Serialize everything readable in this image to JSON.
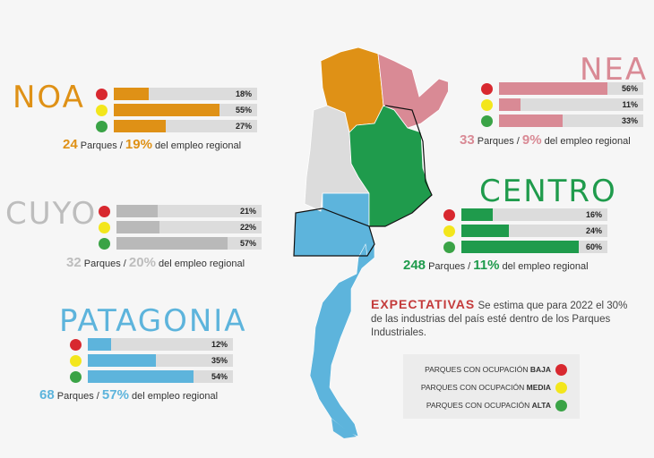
{
  "colors": {
    "red": "#d8282f",
    "yellow": "#f3e61c",
    "green": "#3aa346",
    "track": "#dcdcdc"
  },
  "chart_data": [
    {
      "type": "bar",
      "region": "NOA",
      "color": "#df9116",
      "categories": [
        "BAJA",
        "MEDIA",
        "ALTA"
      ],
      "values": [
        18,
        55,
        27
      ],
      "labels": [
        "18%",
        "55%",
        "27%"
      ],
      "summary": {
        "parks": "24",
        "parks_label": "Parques /",
        "pct": "19%",
        "pct_label": "del empleo regional"
      }
    },
    {
      "type": "bar",
      "region": "CUYO",
      "color": "#b9b9b9",
      "categories": [
        "BAJA",
        "MEDIA",
        "ALTA"
      ],
      "values": [
        21,
        22,
        57
      ],
      "labels": [
        "21%",
        "22%",
        "57%"
      ],
      "summary": {
        "parks": "32",
        "parks_label": "Parques /",
        "pct": "20%",
        "pct_label": "del empleo regional"
      }
    },
    {
      "type": "bar",
      "region": "PATAGONIA",
      "color": "#5db4dc",
      "categories": [
        "BAJA",
        "MEDIA",
        "ALTA"
      ],
      "values": [
        12,
        35,
        54
      ],
      "labels": [
        "12%",
        "35%",
        "54%"
      ],
      "summary": {
        "parks": "68",
        "parks_label": "Parques /",
        "pct": "57%",
        "pct_label": "del empleo regional"
      }
    },
    {
      "type": "bar",
      "region": "NEA",
      "color": "#d98a95",
      "categories": [
        "BAJA",
        "MEDIA",
        "ALTA"
      ],
      "values": [
        56,
        11,
        33
      ],
      "labels": [
        "56%",
        "11%",
        "33%"
      ],
      "summary": {
        "parks": "33",
        "parks_label": "Parques /",
        "pct": "9%",
        "pct_label": "del empleo regional"
      }
    },
    {
      "type": "bar",
      "region": "CENTRO",
      "color": "#1f9b4c",
      "categories": [
        "BAJA",
        "MEDIA",
        "ALTA"
      ],
      "values": [
        16,
        24,
        60
      ],
      "labels": [
        "16%",
        "24%",
        "60%"
      ],
      "summary": {
        "parks": "248",
        "parks_label": "Parques /",
        "pct": "11%",
        "pct_label": "del empleo regional"
      }
    }
  ],
  "expectativas": {
    "title": "EXPECTATIVAS",
    "text": "Se estima que para 2022 el 30% de las industrias del país esté dentro de los Parques Industriales."
  },
  "legend": [
    {
      "prefix": "PARQUES CON OCUPACIÓN ",
      "level": "BAJA",
      "color": "#d8282f"
    },
    {
      "prefix": "PARQUES CON OCUPACIÓN ",
      "level": "MEDIA",
      "color": "#f3e61c"
    },
    {
      "prefix": "PARQUES CON OCUPACIÓN ",
      "level": "ALTA",
      "color": "#3aa346"
    }
  ]
}
